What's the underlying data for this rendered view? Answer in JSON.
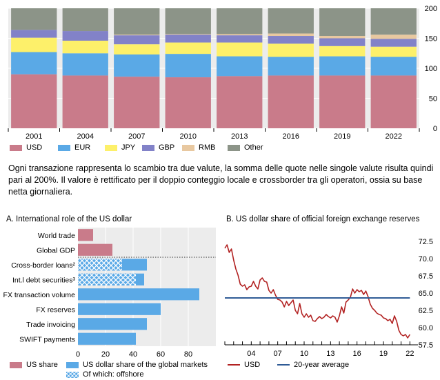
{
  "chart_data": [
    {
      "type": "bar",
      "stacked": true,
      "categories": [
        "2001",
        "2004",
        "2007",
        "2010",
        "2013",
        "2016",
        "2019",
        "2022"
      ],
      "series": [
        {
          "name": "USD",
          "color": "#c97b8a",
          "values": [
            90,
            88,
            86,
            85,
            87,
            88,
            88,
            88
          ]
        },
        {
          "name": "EUR",
          "color": "#5aa9e6",
          "values": [
            37,
            37,
            37,
            39,
            33,
            31,
            32,
            31
          ]
        },
        {
          "name": "JPY",
          "color": "#fdf06a",
          "values": [
            24,
            21,
            17,
            19,
            23,
            22,
            17,
            17
          ]
        },
        {
          "name": "GBP",
          "color": "#8282c8",
          "values": [
            13,
            16,
            15,
            13,
            12,
            13,
            13,
            13
          ]
        },
        {
          "name": "RMB",
          "color": "#e8c8a0",
          "values": [
            0,
            0,
            1,
            1,
            2,
            4,
            4,
            7
          ]
        },
        {
          "name": "Other",
          "color": "#8c9488",
          "values": [
            36,
            38,
            44,
            43,
            43,
            42,
            46,
            44
          ]
        }
      ],
      "ylim": [
        0,
        200
      ],
      "yticks": [
        0,
        50,
        100,
        150,
        200
      ],
      "grid": true,
      "legend_position": "bottom"
    },
    {
      "type": "bar",
      "orientation": "horizontal",
      "title": "A. International role of the US dollar",
      "categories": [
        "World trade",
        "Global GDP",
        "Cross-border loans²",
        "Int.l debt securities³",
        "FX transaction volume",
        "FX reserves",
        "Trade invoicing",
        "SWIFT payments"
      ],
      "series": [
        {
          "name": "US share",
          "color": "#c97b8a",
          "values": [
            11,
            25,
            null,
            null,
            null,
            null,
            null,
            null
          ]
        },
        {
          "name": "US dollar share of the global markets",
          "color": "#5aa9e6",
          "values": [
            null,
            null,
            50,
            48,
            88,
            60,
            50,
            42
          ]
        },
        {
          "name": "Of which: offshore",
          "color": "#5aa9e6",
          "pattern": "crosshatch",
          "values": [
            null,
            null,
            32,
            42,
            null,
            null,
            null,
            null
          ]
        }
      ],
      "xlim": [
        0,
        100
      ],
      "xticks": [
        0,
        20,
        40,
        60,
        80
      ],
      "grid": true
    },
    {
      "type": "line",
      "title": "B. US dollar share of official foreign exchange reserves",
      "x_ticks": [
        "04",
        "07",
        "10",
        "13",
        "16",
        "19",
        "22"
      ],
      "ylim": [
        57.5,
        73.5
      ],
      "yticks": [
        57.5,
        60.0,
        62.5,
        65.0,
        67.5,
        70.0,
        72.5
      ],
      "series": [
        {
          "name": "USD",
          "color": "#b22222",
          "x": [
            2001.0,
            2001.25,
            2001.5,
            2001.75,
            2002.0,
            2002.25,
            2002.5,
            2002.75,
            2003.0,
            2003.25,
            2003.5,
            2003.75,
            2004.0,
            2004.25,
            2004.5,
            2004.75,
            2005.0,
            2005.25,
            2005.5,
            2005.75,
            2006.0,
            2006.25,
            2006.5,
            2006.75,
            2007.0,
            2007.25,
            2007.5,
            2007.75,
            2008.0,
            2008.25,
            2008.5,
            2008.75,
            2009.0,
            2009.25,
            2009.5,
            2009.75,
            2010.0,
            2010.25,
            2010.5,
            2010.75,
            2011.0,
            2011.25,
            2011.5,
            2011.75,
            2012.0,
            2012.25,
            2012.5,
            2012.75,
            2013.0,
            2013.25,
            2013.5,
            2013.75,
            2014.0,
            2014.25,
            2014.5,
            2014.75,
            2015.0,
            2015.25,
            2015.5,
            2015.75,
            2016.0,
            2016.25,
            2016.5,
            2016.75,
            2017.0,
            2017.25,
            2017.5,
            2017.75,
            2018.0,
            2018.25,
            2018.5,
            2018.75,
            2019.0,
            2019.25,
            2019.5,
            2019.75,
            2020.0,
            2020.25,
            2020.5,
            2020.75,
            2021.0,
            2021.25,
            2021.5,
            2021.75,
            2022.0
          ],
          "values": [
            71.5,
            72.0,
            70.9,
            71.4,
            69.8,
            68.5,
            67.6,
            66.3,
            66.0,
            66.2,
            65.5,
            65.9,
            66.0,
            66.7,
            66.0,
            65.6,
            66.9,
            67.2,
            66.7,
            66.6,
            65.4,
            65.0,
            65.5,
            64.7,
            64.1,
            64.0,
            63.7,
            63.0,
            63.8,
            63.2,
            63.6,
            64.0,
            62.5,
            62.0,
            63.5,
            62.0,
            61.5,
            62.0,
            61.5,
            61.8,
            61.0,
            60.9,
            61.3,
            61.6,
            61.3,
            61.5,
            61.9,
            61.6,
            61.4,
            61.7,
            61.5,
            60.8,
            61.7,
            63.0,
            62.1,
            63.7,
            64.0,
            64.4,
            65.6,
            65.0,
            65.5,
            65.2,
            65.4,
            64.8,
            65.3,
            64.5,
            63.4,
            62.8,
            62.5,
            62.1,
            61.9,
            61.8,
            61.4,
            61.3,
            61.0,
            61.2,
            60.6,
            61.7,
            60.9,
            59.6,
            59.0,
            58.8,
            59.0,
            58.5,
            59.0
          ]
        },
        {
          "name": "20-year average",
          "color": "#2f5b96",
          "x": [
            2001.0,
            2022.0
          ],
          "values": [
            64.3,
            64.3
          ]
        }
      ],
      "grid": false
    }
  ],
  "note": "Ogni transazione rappresenta lo scambio tra due valute, la somma delle quote nelle singole valute risulta quindi pari al 200%. Il valore è rettificato per il doppio conteggio locale e crossborder tra gli operatori, ossia su base netta giornaliera."
}
